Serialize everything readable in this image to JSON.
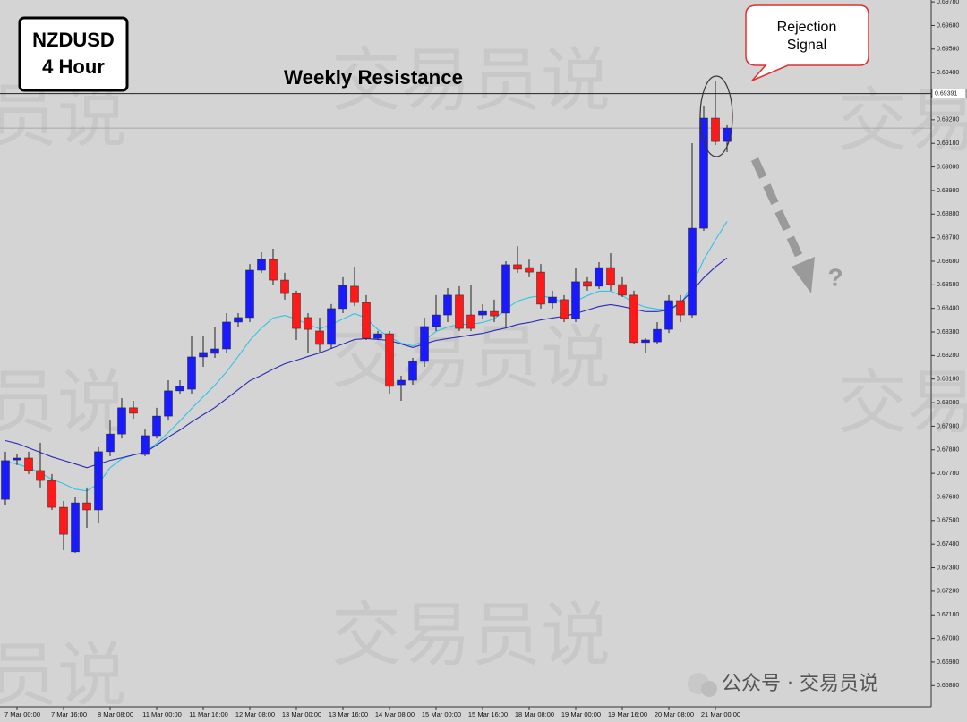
{
  "chart_data": {
    "type": "candlestick",
    "title": "NZDUSD",
    "subtitle": "4 Hour",
    "categories": [
      null,
      "7 Mar 00:00",
      null,
      null,
      null,
      "7 Mar 16:00",
      null,
      null,
      null,
      "8 Mar 08:00",
      null,
      null,
      null,
      "11 Mar 00:00",
      null,
      null,
      null,
      "11 Mar 16:00",
      null,
      null,
      null,
      "12 Mar 08:00",
      null,
      null,
      null,
      "13 Mar 00:00",
      null,
      null,
      null,
      "13 Mar 16:00",
      null,
      null,
      null,
      "14 Mar 08:00",
      null,
      null,
      null,
      "15 Mar 00:00",
      null,
      null,
      null,
      "15 Mar 16:00",
      null,
      null,
      null,
      "18 Mar 08:00",
      null,
      null,
      null,
      "19 Mar 00:00",
      null,
      null,
      null,
      "19 Mar 16:00",
      null,
      null,
      null,
      "20 Mar 08:00",
      null,
      null,
      null,
      "21 Mar 00:00",
      null
    ],
    "open": [
      0.6767,
      0.67837,
      0.67845,
      0.67792,
      0.6775,
      0.67636,
      0.67447,
      0.67655,
      0.67625,
      0.67872,
      0.67947,
      0.68058,
      0.6786,
      0.6794,
      0.68023,
      0.6813,
      0.68137,
      0.68274,
      0.68289,
      0.68308,
      0.68422,
      0.68441,
      0.68642,
      0.68687,
      0.686,
      0.68543,
      0.68441,
      0.68384,
      0.68327,
      0.68479,
      0.68574,
      0.68505,
      0.68353,
      0.68372,
      0.68156,
      0.68175,
      0.68255,
      0.68403,
      0.68452,
      0.68536,
      0.68452,
      0.68452,
      0.68467,
      0.6846,
      0.68665,
      0.68653,
      0.68634,
      0.68502,
      0.68517,
      0.68437,
      0.68593,
      0.68574,
      0.68653,
      0.68581,
      0.68536,
      0.68335,
      0.68338,
      0.68391,
      0.68513,
      0.68452,
      0.6882,
      0.69287,
      0.69188
    ],
    "high": [
      0.67872,
      0.67864,
      0.67872,
      0.6791,
      0.67777,
      0.67663,
      0.67682,
      0.6772,
      0.67891,
      0.68004,
      0.68099,
      0.68088,
      0.67966,
      0.68058,
      0.68175,
      0.68175,
      0.68365,
      0.68365,
      0.68403,
      0.6846,
      0.6846,
      0.68668,
      0.68718,
      0.68733,
      0.68631,
      0.68555,
      0.6846,
      0.68441,
      0.68498,
      0.68612,
      0.68657,
      0.68536,
      0.68384,
      0.68384,
      0.68194,
      0.6827,
      0.68441,
      0.68536,
      0.68566,
      0.68574,
      0.68581,
      0.68498,
      0.68517,
      0.6868,
      0.68744,
      0.68687,
      0.68668,
      0.68555,
      0.68536,
      0.6865,
      0.68612,
      0.68676,
      0.68714,
      0.68612,
      0.68555,
      0.68353,
      0.68422,
      0.68536,
      0.68536,
      0.69181,
      0.6934,
      0.69446,
      0.69257
    ],
    "low": [
      0.67644,
      0.67815,
      0.67777,
      0.6772,
      0.67625,
      0.67454,
      0.67443,
      0.67549,
      0.67568,
      0.67853,
      0.67928,
      0.68012,
      0.67853,
      0.67928,
      0.68004,
      0.68118,
      0.68118,
      0.68232,
      0.6827,
      0.68289,
      0.68403,
      0.68422,
      0.68631,
      0.68581,
      0.68517,
      0.68346,
      0.68289,
      0.68289,
      0.68308,
      0.6846,
      0.6849,
      0.68346,
      0.68346,
      0.68118,
      0.68088,
      0.68156,
      0.68232,
      0.68384,
      0.68422,
      0.68384,
      0.68384,
      0.68437,
      0.68422,
      0.68403,
      0.68631,
      0.68612,
      0.68479,
      0.68479,
      0.68422,
      0.68422,
      0.68555,
      0.68562,
      0.68555,
      0.68528,
      0.68327,
      0.68289,
      0.68327,
      0.68376,
      0.68422,
      0.68441,
      0.68809,
      0.69173,
      0.69143
    ],
    "close": [
      0.67834,
      0.67845,
      0.67792,
      0.6775,
      0.67636,
      0.67522,
      0.67655,
      0.67625,
      0.67872,
      0.67947,
      0.68058,
      0.68035,
      0.6794,
      0.68023,
      0.6813,
      0.68149,
      0.68274,
      0.68293,
      0.68308,
      0.68422,
      0.68441,
      0.68642,
      0.68687,
      0.686,
      0.68543,
      0.68395,
      0.68391,
      0.68327,
      0.68479,
      0.68577,
      0.68505,
      0.68353,
      0.68372,
      0.68149,
      0.68175,
      0.68255,
      0.68403,
      0.68452,
      0.68536,
      0.68395,
      0.68395,
      0.68467,
      0.68448,
      0.68665,
      0.68646,
      0.68634,
      0.68498,
      0.68528,
      0.68437,
      0.68593,
      0.68574,
      0.68653,
      0.68581,
      0.68536,
      0.68335,
      0.68346,
      0.68391,
      0.68513,
      0.68452,
      0.6882,
      0.69287,
      0.69188,
      0.69245
    ],
    "up_color": "#1a1aff",
    "down_color": "#ff1a1a",
    "lines": [
      {
        "color": "#2ec4ea",
        "values": [
          0.67831,
          0.6782,
          0.67804,
          0.67782,
          0.67755,
          0.67736,
          0.67713,
          0.67706,
          0.67736,
          0.67804,
          0.67842,
          0.67858,
          0.67869,
          0.67907,
          0.67953,
          0.68002,
          0.68055,
          0.68105,
          0.68154,
          0.68211,
          0.68276,
          0.68344,
          0.68397,
          0.68439,
          0.6845,
          0.68435,
          0.68412,
          0.68393,
          0.68412,
          0.68435,
          0.68458,
          0.68439,
          0.6839,
          0.68359,
          0.68333,
          0.68321,
          0.68344,
          0.68382,
          0.68401,
          0.68412,
          0.68412,
          0.6842,
          0.68435,
          0.68477,
          0.68511,
          0.68526,
          0.68534,
          0.68523,
          0.68504,
          0.68511,
          0.68534,
          0.68553,
          0.68553,
          0.68534,
          0.68504,
          0.68485,
          0.68477,
          0.68473,
          0.68496,
          0.6858,
          0.68686,
          0.6877,
          0.68849
        ]
      },
      {
        "color": "#2a2ab8",
        "values": [
          0.67919,
          0.67907,
          0.67888,
          0.67869,
          0.6785,
          0.67835,
          0.6782,
          0.67804,
          0.6782,
          0.67835,
          0.67846,
          0.67858,
          0.67869,
          0.679,
          0.67934,
          0.67964,
          0.67998,
          0.68029,
          0.68059,
          0.68097,
          0.68135,
          0.68173,
          0.68196,
          0.68222,
          0.68245,
          0.6826,
          0.68276,
          0.68291,
          0.6831,
          0.68329,
          0.68348,
          0.68352,
          0.68348,
          0.68344,
          0.68329,
          0.68314,
          0.68329,
          0.68344,
          0.68352,
          0.68359,
          0.68367,
          0.68374,
          0.68386,
          0.68397,
          0.68412,
          0.6842,
          0.68431,
          0.68439,
          0.68447,
          0.68458,
          0.68473,
          0.68488,
          0.68496,
          0.68488,
          0.68477,
          0.68466,
          0.68466,
          0.68473,
          0.68504,
          0.68553,
          0.6861,
          0.68656,
          0.68694
        ]
      }
    ],
    "ylim": [
      0.6679,
      0.69788
    ],
    "yticks": [
      {
        "value": 0.6978,
        "label": "0.69780"
      },
      {
        "value": 0.6968,
        "label": "0.69680"
      },
      {
        "value": 0.6958,
        "label": "0.69580"
      },
      {
        "value": 0.6948,
        "label": "0.69480"
      },
      {
        "value": 0.6938,
        "label": "0.69380"
      },
      {
        "value": 0.6928,
        "label": "0.69280"
      },
      {
        "value": 0.6918,
        "label": "0.69180"
      },
      {
        "value": 0.6908,
        "label": "0.69080"
      },
      {
        "value": 0.6898,
        "label": "0.68980"
      },
      {
        "value": 0.6888,
        "label": "0.68880"
      },
      {
        "value": 0.6878,
        "label": "0.68780"
      },
      {
        "value": 0.6868,
        "label": "0.68680"
      },
      {
        "value": 0.6858,
        "label": "0.68580"
      },
      {
        "value": 0.6848,
        "label": "0.68480"
      },
      {
        "value": 0.6838,
        "label": "0.68380"
      },
      {
        "value": 0.6828,
        "label": "0.68280"
      },
      {
        "value": 0.6818,
        "label": "0.68180"
      },
      {
        "value": 0.6808,
        "label": "0.68080"
      },
      {
        "value": 0.6798,
        "label": "0.67980"
      },
      {
        "value": 0.6788,
        "label": "0.67880"
      },
      {
        "value": 0.6778,
        "label": "0.67780"
      },
      {
        "value": 0.6768,
        "label": "0.67680"
      },
      {
        "value": 0.6758,
        "label": "0.67580"
      },
      {
        "value": 0.6748,
        "label": "0.67480"
      },
      {
        "value": 0.6738,
        "label": "0.67380"
      },
      {
        "value": 0.6728,
        "label": "0.67280"
      },
      {
        "value": 0.6718,
        "label": "0.67180"
      },
      {
        "value": 0.6708,
        "label": "0.67080"
      },
      {
        "value": 0.6698,
        "label": "0.66980"
      },
      {
        "value": 0.6688,
        "label": "0.66880"
      }
    ],
    "grid": false,
    "annotations": {
      "resistance_label": "Weekly Resistance",
      "resistance": {
        "value": 0.69391,
        "label": "0.69391"
      },
      "callout": [
        "Rejection",
        "Signal"
      ],
      "question": "?"
    }
  },
  "watermark": "交易员说",
  "footer": "公众号 · 交易员说"
}
